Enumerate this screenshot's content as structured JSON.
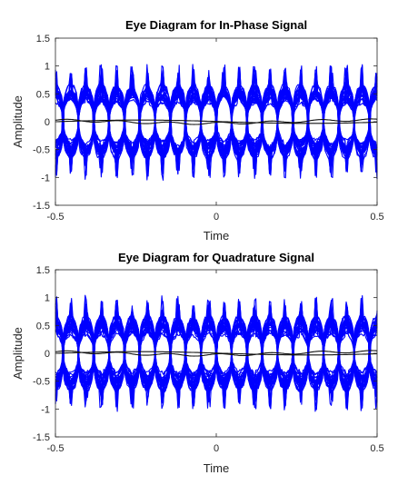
{
  "chart_data": [
    {
      "type": "line",
      "title": "Eye Diagram for In-Phase Signal",
      "xlabel": "Time",
      "ylabel": "Amplitude",
      "xlim": [
        -0.5,
        0.5
      ],
      "ylim": [
        -1.5,
        1.5
      ],
      "xticks": [
        -0.5,
        0,
        0.5
      ],
      "xtick_labels": [
        "-0.5",
        "0",
        "0.5"
      ],
      "yticks": [
        -1.5,
        -1,
        -0.5,
        0,
        0.5,
        1,
        1.5
      ],
      "ytick_labels": [
        "-1.5",
        "-1",
        "-0.5",
        "0",
        "0.5",
        "1",
        "1.5"
      ],
      "grid": false,
      "series_color": "#0000ff",
      "eye_description": "dense multi-trace eye pattern; traces cluster near +0.5 and -0.5 with peaks up to about 1.0 and -1.0, crossing 0 about 21 times across the window",
      "upper_level": 0.5,
      "lower_level": -0.5,
      "peak_amplitude": 1.0,
      "eye_openings": 21
    },
    {
      "type": "line",
      "title": "Eye Diagram for Quadrature Signal",
      "xlabel": "Time",
      "ylabel": "Amplitude",
      "xlim": [
        -0.5,
        0.5
      ],
      "ylim": [
        -1.5,
        1.5
      ],
      "xticks": [
        -0.5,
        0,
        0.5
      ],
      "xtick_labels": [
        "-0.5",
        "0",
        "0.5"
      ],
      "yticks": [
        -1.5,
        -1,
        -0.5,
        0,
        0.5,
        1,
        1.5
      ],
      "ytick_labels": [
        "-1.5",
        "-1",
        "-0.5",
        "0",
        "0.5",
        "1",
        "1.5"
      ],
      "grid": false,
      "series_color": "#0000ff",
      "eye_description": "dense multi-trace eye pattern; traces cluster near +0.5 and -0.5 with peaks up to about 1.0 and -1.0, crossing 0 about 21 times across the window",
      "upper_level": 0.5,
      "lower_level": -0.5,
      "peak_amplitude": 1.0,
      "eye_openings": 21
    }
  ]
}
